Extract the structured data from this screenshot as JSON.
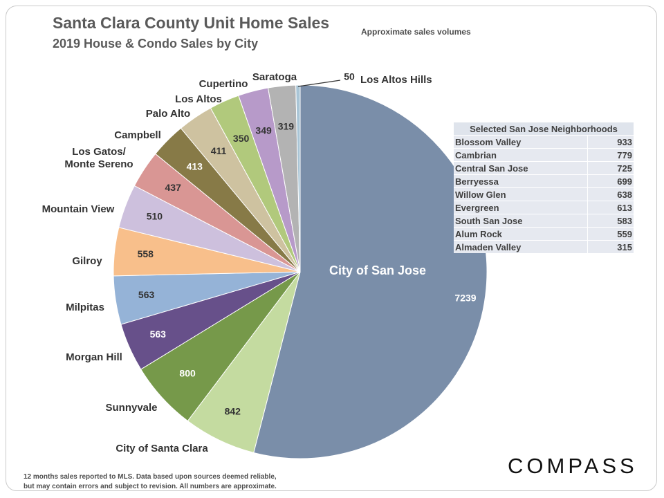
{
  "header": {
    "title": "Santa Clara County Unit Home Sales",
    "subtitle": "2019 House & Condo Sales by City",
    "note": "Approximate sales volumes"
  },
  "colors": {
    "City of San Jose": "#7a8ea9",
    "City of Santa Clara": "#c4dba0",
    "Sunnyvale": "#76994a",
    "Morgan Hill": "#67508a",
    "Milpitas": "#95b3d7",
    "Gilroy": "#f8bf8b",
    "Mountain View": "#cdc0dd",
    "Los Gatos/ Monte Sereno": "#d99694",
    "Campbell": "#877a47",
    "Palo Alto": "#cec2a0",
    "Los Altos": "#b1c97c",
    "Cupertino": "#b79ac9",
    "Saratoga": "#b3b3b3",
    "Los Altos Hills": "#a9c5d6"
  },
  "chart_data": {
    "type": "pie",
    "title": "Santa Clara County Unit Home Sales",
    "subtitle": "2019 House & Condo Sales by City",
    "slices": [
      {
        "label": "City of San Jose",
        "value": 7239
      },
      {
        "label": "City of Santa Clara",
        "value": 842
      },
      {
        "label": "Sunnyvale",
        "value": 800
      },
      {
        "label": "Morgan Hill",
        "value": 563
      },
      {
        "label": "Milpitas",
        "value": 563
      },
      {
        "label": "Gilroy",
        "value": 558
      },
      {
        "label": "Mountain View",
        "value": 510
      },
      {
        "label": "Los Gatos/ Monte Sereno",
        "value": 437
      },
      {
        "label": "Campbell",
        "value": 413
      },
      {
        "label": "Palo Alto",
        "value": 411
      },
      {
        "label": "Los Altos",
        "value": 350
      },
      {
        "label": "Cupertino",
        "value": 349
      },
      {
        "label": "Saratoga",
        "value": 319
      },
      {
        "label": "Los Altos Hills",
        "value": 50
      }
    ]
  },
  "neighborhoods": {
    "header": "Selected San Jose Neighborhoods",
    "rows": [
      {
        "name": "Blossom Valley",
        "value": "933"
      },
      {
        "name": "Cambrian",
        "value": "779"
      },
      {
        "name": "Central San Jose",
        "value": "725"
      },
      {
        "name": "Berryessa",
        "value": "699"
      },
      {
        "name": "Willow Glen",
        "value": "638"
      },
      {
        "name": "Evergreen",
        "value": "613"
      },
      {
        "name": "South San Jose",
        "value": "583"
      },
      {
        "name": "Alum Rock",
        "value": "559"
      },
      {
        "name": "Almaden Valley",
        "value": "315"
      }
    ]
  },
  "footer": {
    "line1": "12 months sales reported to MLS. Data based upon sources deemed reliable,",
    "line2": "but may contain errors and subject to revision. All numbers are approximate.",
    "logo": "COMPASS"
  }
}
